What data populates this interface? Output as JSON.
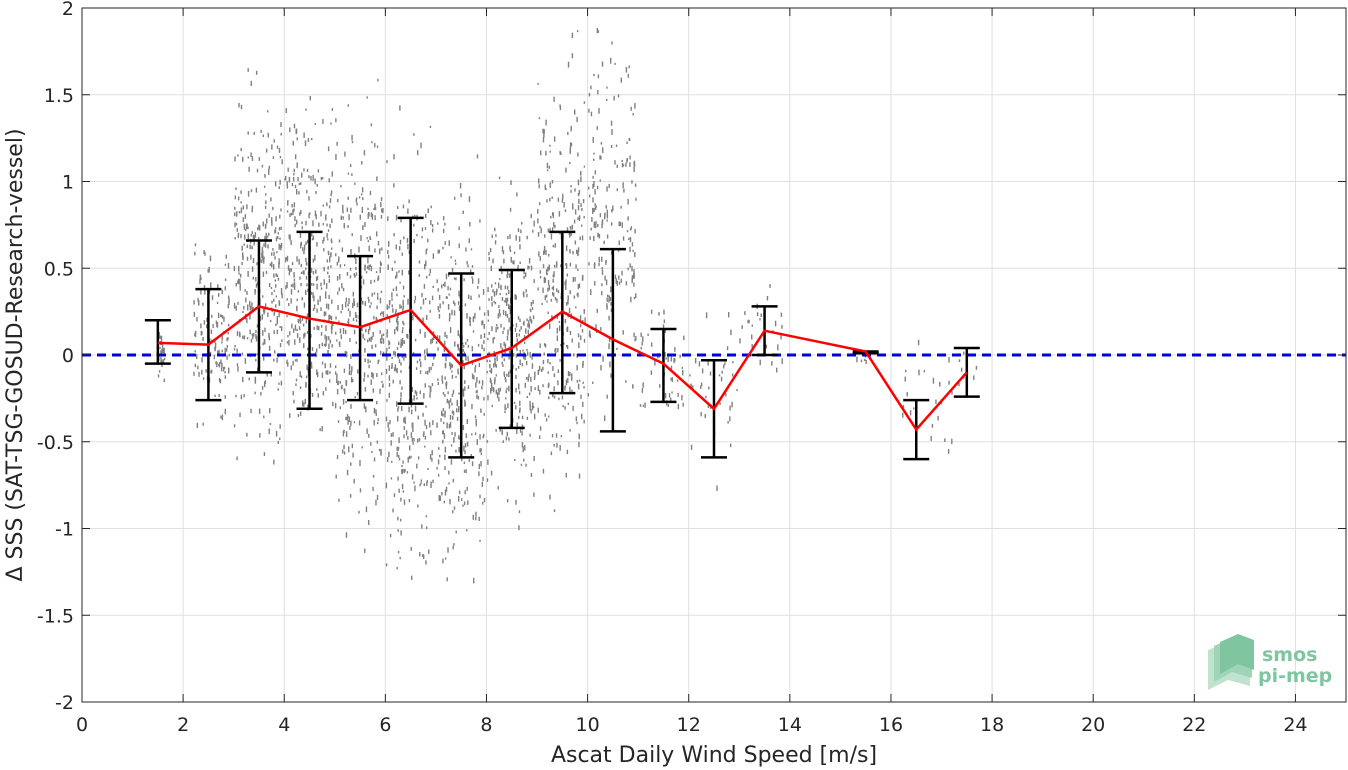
{
  "chart_data": {
    "type": "scatter",
    "title": "",
    "xlabel": "Ascat Daily Wind Speed [m/s]",
    "ylabel": "Δ SSS (SAT-TSG-GOSUD-Research-vessel)",
    "xlim": [
      0,
      25
    ],
    "ylim": [
      -2,
      2
    ],
    "xticks": [
      0,
      2,
      4,
      6,
      8,
      10,
      12,
      14,
      16,
      18,
      20,
      22,
      24
    ],
    "yticks": [
      -2,
      -1.5,
      -1,
      -0.5,
      0,
      0.5,
      1,
      1.5,
      2
    ],
    "xtick_labels": [
      "0",
      "2",
      "4",
      "6",
      "8",
      "10",
      "12",
      "14",
      "16",
      "18",
      "20",
      "22",
      "24"
    ],
    "ytick_labels": [
      "-2",
      "-1.5",
      "-1",
      "-0.5",
      "0",
      "0.5",
      "1",
      "1.5",
      "2"
    ],
    "grid": true,
    "reference_line": {
      "y": 0,
      "style": "dashed",
      "color": "#0000dd"
    },
    "mean_series": {
      "color": "#ff0000",
      "x": [
        1.5,
        2.5,
        3.5,
        4.5,
        5.5,
        6.5,
        7.5,
        8.5,
        9.5,
        10.5,
        11.5,
        12.5,
        13.5,
        15.5,
        16.5,
        17.5
      ],
      "y": [
        0.07,
        0.06,
        0.28,
        0.21,
        0.16,
        0.26,
        -0.06,
        0.04,
        0.25,
        0.09,
        -0.05,
        -0.31,
        0.14,
        0.02,
        -0.43,
        -0.1
      ]
    },
    "error_bars": {
      "color": "#000000",
      "x": [
        1.5,
        2.5,
        3.5,
        4.5,
        5.5,
        6.5,
        7.5,
        8.5,
        9.5,
        10.5,
        11.5,
        12.5,
        13.5,
        15.5,
        16.5,
        17.5
      ],
      "low": [
        -0.05,
        -0.26,
        -0.1,
        -0.31,
        -0.26,
        -0.28,
        -0.59,
        -0.42,
        -0.22,
        -0.44,
        -0.27,
        -0.59,
        0.0,
        0.01,
        -0.6,
        -0.24
      ],
      "high": [
        0.2,
        0.38,
        0.66,
        0.71,
        0.57,
        0.79,
        0.47,
        0.49,
        0.71,
        0.61,
        0.15,
        -0.03,
        0.28,
        0.02,
        -0.26,
        0.04
      ]
    },
    "scatter_clusters": {
      "color": "#808080",
      "columns": [
        {
          "x": [
            1.45,
            1.65
          ],
          "y": [
            -0.2,
            0.2
          ],
          "n": 30
        },
        {
          "x": [
            2.2,
            2.9
          ],
          "y": [
            -0.45,
            0.72
          ],
          "n": 120
        },
        {
          "x": [
            3.0,
            3.95
          ],
          "y": [
            -0.6,
            1.6
          ],
          "n": 320
        },
        {
          "x": [
            4.0,
            4.95
          ],
          "y": [
            -0.55,
            1.45
          ],
          "n": 320
        },
        {
          "x": [
            5.0,
            5.95
          ],
          "y": [
            -1.1,
            1.6
          ],
          "n": 320
        },
        {
          "x": [
            6.0,
            6.95
          ],
          "y": [
            -1.35,
            1.3
          ],
          "n": 320
        },
        {
          "x": [
            7.0,
            7.95
          ],
          "y": [
            -1.35,
            1.0
          ],
          "n": 300
        },
        {
          "x": [
            8.0,
            8.95
          ],
          "y": [
            -0.95,
            1.1
          ],
          "n": 300
        },
        {
          "x": [
            9.0,
            9.95
          ],
          "y": [
            -0.9,
            1.8
          ],
          "n": 300
        },
        {
          "x": [
            10.0,
            10.95
          ],
          "y": [
            -0.45,
            2.0
          ],
          "n": 200
        },
        {
          "x": [
            11.0,
            11.9
          ],
          "y": [
            -0.45,
            0.35
          ],
          "n": 50
        },
        {
          "x": [
            12.0,
            12.95
          ],
          "y": [
            -0.7,
            0.25
          ],
          "n": 40
        },
        {
          "x": [
            13.0,
            13.9
          ],
          "y": [
            -0.1,
            0.43
          ],
          "n": 25
        },
        {
          "x": [
            15.3,
            15.8
          ],
          "y": [
            -0.05,
            0.05
          ],
          "n": 6
        },
        {
          "x": [
            16.2,
            17.2
          ],
          "y": [
            -0.65,
            0.2
          ],
          "n": 25
        },
        {
          "x": [
            17.3,
            17.7
          ],
          "y": [
            -0.2,
            0.05
          ],
          "n": 8
        }
      ]
    }
  },
  "logo": {
    "line1": "smos",
    "line2": "pi-mep"
  }
}
